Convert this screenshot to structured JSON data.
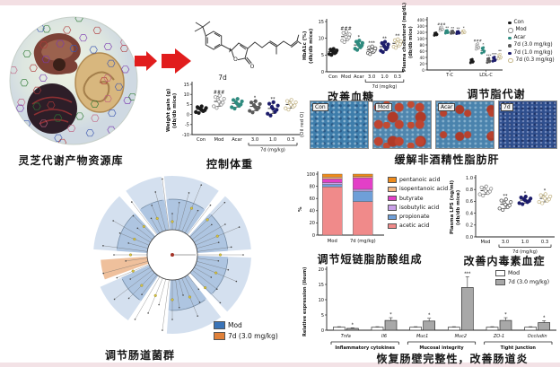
{
  "panels": {
    "library": {
      "caption": "灵芝代谢产物资源库"
    },
    "compound": {
      "label": "7d",
      "atom_labels": [
        "O",
        "O"
      ]
    },
    "histology": {
      "stain": "(Oil red O)",
      "tiles": [
        "Con",
        "Mod",
        "Acar",
        "7d"
      ],
      "caption": "缓解非酒精性脂肪肝"
    },
    "cladogram": {
      "caption": "调节肠道菌群",
      "legend": [
        {
          "label": "Mod",
          "color": "#3a74b8"
        },
        {
          "label": "7d (3.0 mg/kg)",
          "color": "#e0813a"
        }
      ]
    }
  },
  "chart_data": [
    {
      "id": "weight_gain",
      "type": "scatter",
      "title": "控制体重",
      "ylabel": "Weight gain (g)",
      "ylabel_sub": "(db/db mice)",
      "yticks": [
        -10,
        -5,
        0,
        5,
        10,
        15
      ],
      "bracket": {
        "label": "7d (mg/kg)",
        "from": 3,
        "to": 5
      },
      "groups": [
        {
          "label": "Con",
          "mean": 2.5,
          "sd": 1.3,
          "color": "#1a1a1a",
          "open": false,
          "ann": ""
        },
        {
          "label": "Mod",
          "mean": 6.5,
          "sd": 2.4,
          "color": "#8f8f8f",
          "open": true,
          "ann": "###"
        },
        {
          "label": "Acar",
          "mean": 5.5,
          "sd": 1.9,
          "color": "#2e8b7f",
          "open": false,
          "ann": ""
        },
        {
          "label": "3.0",
          "mean": 4.0,
          "sd": 2.2,
          "color": "#5a5a5a",
          "open": false,
          "ann": "*"
        },
        {
          "label": "1.0",
          "mean": 3.0,
          "sd": 2.6,
          "color": "#1d1d6b",
          "open": false,
          "ann": "**"
        },
        {
          "label": "0.3",
          "mean": 5.0,
          "sd": 1.9,
          "color": "#c7b98c",
          "open": true,
          "ann": ""
        }
      ]
    },
    {
      "id": "hba1c",
      "type": "scatter",
      "title": "改善血糖",
      "ylabel": "HbA1c (%)",
      "ylabel_sub": "(db/db mice)",
      "yticks": [
        0,
        5,
        10,
        15
      ],
      "bracket": {
        "label": "7d (mg/kg)",
        "from": 3,
        "to": 5
      },
      "groups": [
        {
          "label": "Con",
          "mean": 6.0,
          "sd": 0.7,
          "color": "#1a1a1a",
          "open": false,
          "ann": ""
        },
        {
          "label": "Mod",
          "mean": 10.5,
          "sd": 1.2,
          "color": "#8f8f8f",
          "open": true,
          "ann": "###"
        },
        {
          "label": "Acar",
          "mean": 8.0,
          "sd": 1.1,
          "color": "#2e8b7f",
          "open": false,
          "ann": "*"
        },
        {
          "label": "3.0",
          "mean": 6.5,
          "sd": 0.9,
          "color": "#5a5a5a",
          "open": true,
          "ann": "***"
        },
        {
          "label": "1.0",
          "mean": 7.5,
          "sd": 1.2,
          "color": "#1d1d6b",
          "open": false,
          "ann": "**"
        },
        {
          "label": "0.3",
          "mean": 8.5,
          "sd": 1.0,
          "color": "#c7b98c",
          "open": true,
          "ann": "**"
        }
      ]
    },
    {
      "id": "cholesterol",
      "type": "scatter-2cat",
      "title": "调节脂代谢",
      "ylabel": "Plasma cholesterol (mg/dL)",
      "ylabel_sub": "(db/db mice)",
      "yticks": [
        0,
        20,
        40,
        60,
        80,
        100,
        200,
        300,
        400
      ],
      "categories": [
        "T-C",
        "LDL-C"
      ],
      "groups": [
        {
          "label": "Con",
          "values": [
            170,
            28
          ],
          "sds": [
            18,
            5
          ],
          "color": "#1a1a1a",
          "open": false,
          "ann": [
            "",
            ""
          ]
        },
        {
          "label": "Mod",
          "values": [
            255,
            74
          ],
          "sds": [
            25,
            8
          ],
          "color": "#8f8f8f",
          "open": true,
          "ann": [
            "###",
            "###"
          ]
        },
        {
          "label": "Acar",
          "values": [
            205,
            62
          ],
          "sds": [
            20,
            8
          ],
          "color": "#2e8b7f",
          "open": false,
          "ann": [
            "**",
            "*"
          ]
        },
        {
          "label": "7d (3.0 mg/kg)",
          "values": [
            200,
            30
          ],
          "sds": [
            18,
            6
          ],
          "color": "#5a5a5a",
          "open": false,
          "ann": [
            "**",
            "***"
          ]
        },
        {
          "label": "7d (1.0 mg/kg)",
          "values": [
            195,
            34
          ],
          "sds": [
            16,
            6
          ],
          "color": "#1d1d6b",
          "open": false,
          "ann": [
            "**",
            "***"
          ]
        },
        {
          "label": "7d (0.3 mg/kg)",
          "values": [
            205,
            42
          ],
          "sds": [
            18,
            7
          ],
          "color": "#c7b98c",
          "open": true,
          "ann": [
            "*",
            "**"
          ]
        }
      ]
    },
    {
      "id": "scfa",
      "type": "stacked-bar",
      "title": "调节短链脂肪酸组成",
      "ylabel": "%",
      "ylabel_sub": "",
      "yticks": [
        0,
        20,
        40,
        60,
        80,
        100
      ],
      "categories": [
        "Mod",
        "7d (mg/kg)"
      ],
      "series": [
        {
          "name": "acetic acid",
          "color": "#f08a8a",
          "values": [
            79,
            55
          ]
        },
        {
          "name": "propionate",
          "color": "#6f9fd8",
          "values": [
            4,
            17
          ]
        },
        {
          "name": "isobutylic acid",
          "color": "#c9a0e8",
          "values": [
            3,
            3
          ]
        },
        {
          "name": "butyrate",
          "color": "#e33fc7",
          "values": [
            6,
            19
          ]
        },
        {
          "name": "isopentanoic acid",
          "color": "#f4b884",
          "values": [
            3,
            2
          ]
        },
        {
          "name": "pentanoic acid",
          "color": "#ef8b1a",
          "values": [
            5,
            4
          ]
        }
      ]
    },
    {
      "id": "lps",
      "type": "scatter",
      "title": "改善内毒素血症",
      "ylabel": "Plasma LPS (ng/ml)",
      "ylabel_sub": "(db/db mice)",
      "yticks": [
        0,
        0.2,
        0.4,
        0.6,
        0.8,
        1.0
      ],
      "ydecimals": 1,
      "bracket": {
        "label": "7d (mg/kg)",
        "from": 1,
        "to": 3
      },
      "groups": [
        {
          "label": "Mod",
          "mean": 0.78,
          "sd": 0.06,
          "color": "#8f8f8f",
          "open": true,
          "ann": ""
        },
        {
          "label": "3.0",
          "mean": 0.55,
          "sd": 0.07,
          "color": "#5a5a5a",
          "open": true,
          "ann": "**"
        },
        {
          "label": "1.0",
          "mean": 0.62,
          "sd": 0.05,
          "color": "#1d1d6b",
          "open": false,
          "ann": "*"
        },
        {
          "label": "0.3",
          "mean": 0.65,
          "sd": 0.06,
          "color": "#c7b98c",
          "open": true,
          "ann": "*"
        }
      ]
    },
    {
      "id": "ileum",
      "type": "grouped-bar",
      "title": "恢复肠壁完整性，改善肠道炎症",
      "ylabel": "Relative expression (ileum)",
      "ylabel_sub": "",
      "yticks": [
        0,
        5,
        10,
        15,
        20
      ],
      "genes": [
        "Tnfa",
        "Il6",
        "Muc1",
        "Muc2",
        "ZO-1",
        "Occludin"
      ],
      "gene_groups": [
        {
          "label": "Inflammatory cytokines",
          "from": 0,
          "to": 1
        },
        {
          "label": "Mucosal integrity",
          "from": 2,
          "to": 3
        },
        {
          "label": "Tight junction",
          "from": 4,
          "to": 5
        }
      ],
      "series": [
        {
          "name": "Mod",
          "color": "#ffffff",
          "values": [
            1,
            1,
            1,
            1,
            1,
            1
          ],
          "errors": [
            0.15,
            0.15,
            0.15,
            0.15,
            0.15,
            0.15
          ]
        },
        {
          "name": "7d (3.0 mg/kg)",
          "color": "#a8a8a8",
          "values": [
            0.6,
            3.2,
            3.0,
            14,
            3.2,
            2.5
          ],
          "errors": [
            0.2,
            0.9,
            0.9,
            3.5,
            0.9,
            0.6
          ]
        }
      ],
      "annotations": [
        "*",
        "*",
        "*",
        "***",
        "*",
        "*"
      ]
    }
  ]
}
